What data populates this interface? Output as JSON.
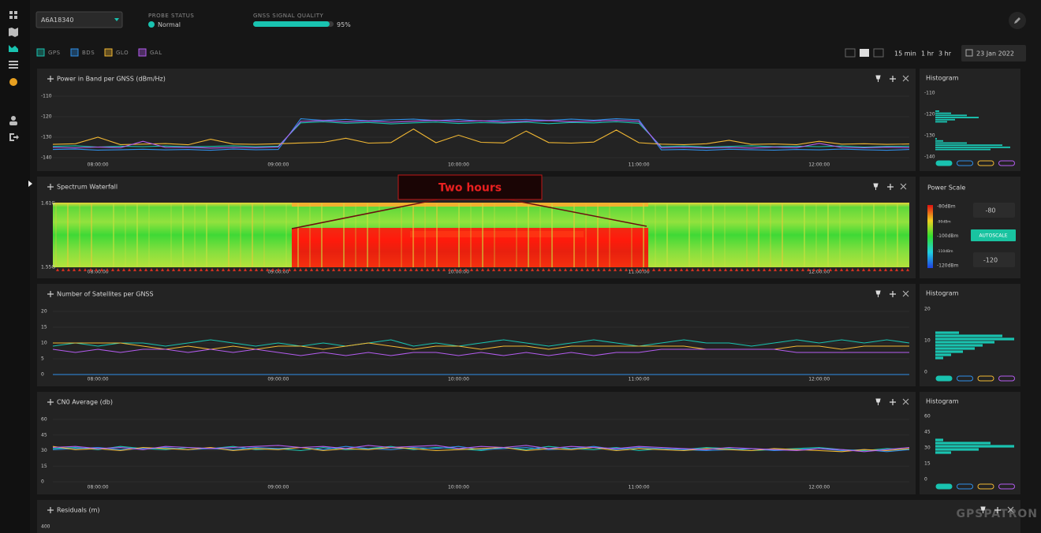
{
  "header": {
    "device": "A6A18340",
    "probe_status_label": "PROBE STATUS",
    "probe_status": "Normal",
    "signal_quality_label": "GNSS SIGNAL QUALITY",
    "signal_quality": 95,
    "signal_quality_label_value": "95%"
  },
  "legend": [
    {
      "name": "GPS",
      "color": "#19c3b0"
    },
    {
      "name": "BDS",
      "color": "#2f8fe8"
    },
    {
      "name": "GLO",
      "color": "#f2b833"
    },
    {
      "name": "GAL",
      "color": "#b45cf0"
    }
  ],
  "time_ranges": [
    "15 min",
    "1 hr",
    "3 hr"
  ],
  "date": "23 Jan 2022",
  "time_axis": {
    "xlim": [
      7.75,
      12.5
    ],
    "x": [
      7.75,
      7.875,
      8,
      8.125,
      8.25,
      8.375,
      8.5,
      8.625,
      8.75,
      8.875,
      9,
      9.125,
      9.25,
      9.375,
      9.5,
      9.625,
      9.75,
      9.875,
      10,
      10.125,
      10.25,
      10.375,
      10.5,
      10.625,
      10.75,
      10.875,
      11,
      11.125,
      11.25,
      11.375,
      11.5,
      11.625,
      11.75,
      11.875,
      12,
      12.125,
      12.25,
      12.375,
      12.5
    ]
  },
  "charts": [
    {
      "type": "line",
      "title": "Power in Band per GNSS (dBm/Hz)",
      "ylim": [
        -140,
        -110
      ],
      "yticks": [
        -110,
        -120,
        -130,
        -140
      ],
      "grid": true,
      "xticks": [
        {
          "value": 8,
          "label": "08:00:00"
        },
        {
          "value": 9,
          "label": "09:00:00"
        },
        {
          "value": 10,
          "label": "10:00:00"
        },
        {
          "value": 11,
          "label": "11:00:00"
        },
        {
          "value": 12,
          "label": "12:00:00"
        }
      ],
      "series": [
        {
          "values": [
            -134.5,
            -134.2,
            -134.8,
            -134.4,
            -134.6,
            -134.3,
            -134.7,
            -134.5,
            -134.2,
            -134.6,
            -134.4,
            -123,
            -122.5,
            -123.2,
            -122.8,
            -123.5,
            -123,
            -122.6,
            -123.3,
            -122.9,
            -123.1,
            -122.7,
            -123.4,
            -122.8,
            -123,
            -122.5,
            -123.2,
            -134.6,
            -134.3,
            -134.8,
            -134.5,
            -134.2,
            -134.7,
            -134.4,
            -134.6,
            -134.3,
            -134.8,
            -134.5,
            -134.4
          ]
        },
        {
          "values": [
            -136,
            -135.8,
            -136.3,
            -136.1,
            -135.9,
            -136.2,
            -136,
            -136.4,
            -135.8,
            -136.1,
            -136,
            -121,
            -121.8,
            -121.3,
            -122,
            -121.5,
            -121.2,
            -121.9,
            -121.4,
            -122.1,
            -121.6,
            -121.3,
            -121.8,
            -121.2,
            -121.7,
            -121,
            -121.5,
            -136.2,
            -136,
            -136.4,
            -135.9,
            -136.1,
            -136.3,
            -136,
            -136.2,
            -135.8,
            -136.1,
            -136.4,
            -136
          ]
        },
        {
          "values": [
            -133.5,
            -133.2,
            -130,
            -133.6,
            -133.4,
            -133.1,
            -133.7,
            -131,
            -133.3,
            -133.5,
            -133.2,
            -132.8,
            -132.5,
            -130.5,
            -132.9,
            -132.6,
            -126,
            -132.7,
            -129,
            -132.5,
            -132.8,
            -127,
            -132.6,
            -132.9,
            -132.4,
            -126.5,
            -132.7,
            -133.4,
            -133.6,
            -133.2,
            -131.5,
            -133.5,
            -133.3,
            -133.6,
            -132,
            -133.4,
            -133.2,
            -133.5,
            -133.3
          ]
        },
        {
          "values": [
            -135,
            -135.2,
            -134.8,
            -135.1,
            -132,
            -135,
            -134.9,
            -135.3,
            -135,
            -135.1,
            -134.8,
            -122.3,
            -121.9,
            -122.5,
            -122.1,
            -122.7,
            -122.2,
            -121.8,
            -122.4,
            -122,
            -122.6,
            -122.2,
            -121.9,
            -122.4,
            -122.1,
            -121.8,
            -122.3,
            -135.1,
            -134.9,
            -135.2,
            -135,
            -135.3,
            -134.8,
            -135.1,
            -133,
            -135,
            -135.2,
            -134.9,
            -135.1
          ]
        }
      ],
      "histogram": {
        "title": "Histogram",
        "ylim": [
          -140,
          -110
        ],
        "yticks": [
          -110,
          -120,
          -130,
          -140
        ],
        "xlim": [
          0,
          100
        ],
        "bins": [
          -140,
          -139,
          -138,
          -137,
          -136,
          -135,
          -134,
          -133,
          -132,
          -131,
          -130,
          -129,
          -128,
          -127,
          -126,
          -125,
          -124,
          -123,
          -122,
          -121,
          -120,
          -119,
          -118
        ],
        "counts": [
          0,
          0,
          0,
          70,
          95,
          85,
          40,
          10,
          2,
          0,
          0,
          0,
          0,
          0,
          0,
          0,
          15,
          25,
          55,
          40,
          20,
          5
        ]
      }
    },
    {
      "type": "waterfall",
      "title": "Spectrum Waterfall",
      "ylim": [
        1.55,
        1.61
      ],
      "yticks": [
        {
          "value": 1.61,
          "label": "1.61G"
        },
        {
          "value": 1.55,
          "label": "1.55G"
        }
      ],
      "xticks": [
        {
          "value": 8,
          "label": "08:00:00"
        },
        {
          "value": 9,
          "label": "09:00:00"
        },
        {
          "value": 10,
          "label": "10:00:00"
        },
        {
          "value": 11,
          "label": "11:00:00"
        },
        {
          "value": 12,
          "label": "12:00:00"
        }
      ],
      "annotation": "Two hours",
      "power_scale": {
        "title": "Power Scale",
        "max": -80,
        "min": -120,
        "button": "AUTOSCALE",
        "ticks": [
          {
            "value": -80,
            "label": "-80dBm"
          },
          {
            "value": -90,
            "label": "-90dBm"
          },
          {
            "value": -100,
            "label": "-100dBm"
          },
          {
            "value": -110,
            "label": "-110dBm"
          },
          {
            "value": -120,
            "label": "-120dBm"
          }
        ]
      }
    },
    {
      "type": "line",
      "title": "Number of Satellites per GNSS",
      "ylim": [
        0,
        20
      ],
      "yticks": [
        20,
        15,
        10,
        5,
        0
      ],
      "grid": true,
      "xticks": [
        {
          "value": 8,
          "label": "08:00:00"
        },
        {
          "value": 9,
          "label": "09:00:00"
        },
        {
          "value": 10,
          "label": "10:00:00"
        },
        {
          "value": 11,
          "label": "11:00:00"
        },
        {
          "value": 12,
          "label": "12:00:00"
        }
      ],
      "series": [
        {
          "values": [
            9,
            10,
            9,
            10,
            10,
            9,
            10,
            11,
            10,
            9,
            10,
            9,
            10,
            9,
            10,
            11,
            9,
            10,
            9,
            10,
            11,
            10,
            9,
            10,
            11,
            10,
            9,
            10,
            11,
            10,
            10,
            9,
            10,
            11,
            10,
            11,
            10,
            11,
            10
          ]
        },
        {
          "values": [
            0,
            0,
            0,
            0,
            0,
            0,
            0,
            0,
            0,
            0,
            0,
            0,
            0,
            0,
            0,
            0,
            0,
            0,
            0,
            0,
            0,
            0,
            0,
            0,
            0,
            0,
            0,
            0,
            0,
            0,
            0,
            0,
            0,
            0,
            0,
            0,
            0,
            0,
            0
          ]
        },
        {
          "values": [
            10,
            10,
            10,
            10,
            9,
            8,
            9,
            8,
            9,
            8,
            9,
            9,
            8,
            9,
            10,
            9,
            8,
            9,
            9,
            8,
            9,
            9,
            8,
            9,
            9,
            9,
            9,
            9,
            9,
            8,
            8,
            8,
            8,
            9,
            9,
            8,
            9,
            9,
            9
          ]
        },
        {
          "values": [
            8,
            7,
            8,
            7,
            8,
            8,
            7,
            8,
            7,
            8,
            7,
            6,
            7,
            6,
            7,
            6,
            7,
            7,
            6,
            7,
            6,
            7,
            6,
            7,
            6,
            7,
            7,
            8,
            8,
            8,
            8,
            8,
            8,
            7,
            7,
            7,
            7,
            7,
            7
          ]
        }
      ],
      "histogram": {
        "title": "Histogram",
        "ylim": [
          0,
          20
        ],
        "yticks": [
          20,
          10,
          0
        ],
        "xlim": [
          0,
          100
        ],
        "bins": [
          0,
          1,
          2,
          3,
          4,
          5,
          6,
          7,
          8,
          9,
          10,
          11,
          12,
          13,
          14,
          15,
          16,
          17,
          18,
          19,
          20
        ],
        "counts": [
          0,
          0,
          0,
          0,
          10,
          20,
          35,
          50,
          60,
          75,
          100,
          85,
          30,
          0,
          0,
          0,
          0,
          0,
          0,
          0
        ]
      }
    },
    {
      "type": "line",
      "title": "CN0 Average (db)",
      "ylim": [
        0,
        60
      ],
      "yticks": [
        60,
        45,
        30,
        15,
        0
      ],
      "grid": true,
      "xticks": [
        {
          "value": 8,
          "label": "08:00:00"
        },
        {
          "value": 9,
          "label": "09:00:00"
        },
        {
          "value": 10,
          "label": "10:00:00"
        },
        {
          "value": 11,
          "label": "11:00:00"
        },
        {
          "value": 12,
          "label": "12:00:00"
        }
      ],
      "series": [
        {
          "values": [
            32,
            33,
            31,
            34,
            32,
            31,
            33,
            32,
            34,
            31,
            32,
            30,
            33,
            31,
            32,
            34,
            31,
            33,
            32,
            30,
            33,
            31,
            34,
            32,
            31,
            33,
            30,
            32,
            31,
            33,
            32,
            30,
            31,
            32,
            33,
            31,
            30,
            32,
            31
          ]
        },
        {
          "values": [
            31,
            32,
            33,
            31,
            32,
            33,
            31,
            32,
            31,
            33,
            32,
            33,
            31,
            34,
            32,
            31,
            33,
            32,
            34,
            31,
            32,
            33,
            31,
            32,
            34,
            31,
            33,
            32,
            31,
            30,
            31,
            32,
            30,
            31,
            32,
            30,
            31,
            29,
            31
          ]
        },
        {
          "values": [
            34,
            31,
            32,
            30,
            33,
            32,
            31,
            33,
            30,
            32,
            31,
            33,
            30,
            32,
            31,
            33,
            32,
            30,
            31,
            32,
            33,
            30,
            32,
            31,
            33,
            30,
            32,
            31,
            30,
            32,
            31,
            30,
            32,
            31,
            30,
            29,
            31,
            30,
            32
          ]
        },
        {
          "values": [
            33,
            34,
            32,
            33,
            31,
            34,
            33,
            32,
            33,
            34,
            35,
            33,
            34,
            32,
            35,
            33,
            34,
            35,
            32,
            34,
            33,
            35,
            32,
            34,
            33,
            32,
            34,
            33,
            32,
            31,
            33,
            32,
            31,
            30,
            32,
            31,
            29,
            31,
            33
          ]
        }
      ],
      "histogram": {
        "title": "Histogram",
        "ylim": [
          0,
          60
        ],
        "yticks": [
          60,
          45,
          30,
          15,
          0
        ],
        "xlim": [
          0,
          100
        ],
        "bins": [
          0,
          3,
          6,
          9,
          12,
          15,
          18,
          21,
          24,
          27,
          30,
          33,
          36,
          39,
          42,
          45,
          48,
          51,
          54,
          57,
          60
        ],
        "counts": [
          0,
          0,
          0,
          0,
          0,
          0,
          0,
          0,
          20,
          55,
          100,
          70,
          10,
          0,
          0,
          0,
          0,
          0,
          0,
          0
        ]
      }
    },
    {
      "type": "line",
      "title": "Residuals (m)",
      "ylim": [
        0,
        400
      ],
      "yticks": [
        400
      ],
      "grid": false,
      "xticks": [],
      "series": []
    }
  ],
  "watermark": "GPSPATRON"
}
